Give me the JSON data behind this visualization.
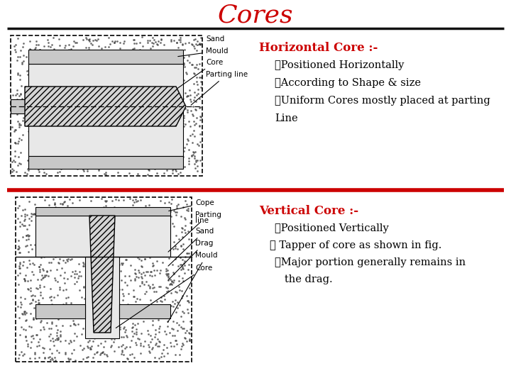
{
  "title": "Cores",
  "title_color": "#CC0000",
  "title_fontsize": 26,
  "bg_color": "#ffffff",
  "top_line_color": "#111111",
  "mid_line_color": "#CC0000",
  "horiz_core_title": "Horizontal Core :-",
  "horiz_bullet1": "➤Positioned Horizontally",
  "horiz_bullet2": "➤According to Shape & size",
  "horiz_bullet3": "➤Uniform Cores mostly placed at parting",
  "horiz_bullet3b": "Line",
  "vert_core_title": "Vertical Core :-",
  "vert_bullet1": "➤Positioned Vertically",
  "vert_bullet2": "➤ Tapper of core as shown in fig.",
  "vert_bullet3": "➤Major portion generally remains in",
  "vert_bullet3b": "   the drag.",
  "bullet_color": "#000000",
  "heading_color": "#CC0000",
  "text_fontsize": 10.5,
  "heading_fontsize": 12,
  "label_fontsize": 7.5,
  "sand_dot_color": "#444444",
  "sand_dot_alpha": 0.6,
  "mould_gray": "#c8c8c8",
  "cavity_gray": "#e8e8e8",
  "core_hatch_gray": "#d4d4d4"
}
